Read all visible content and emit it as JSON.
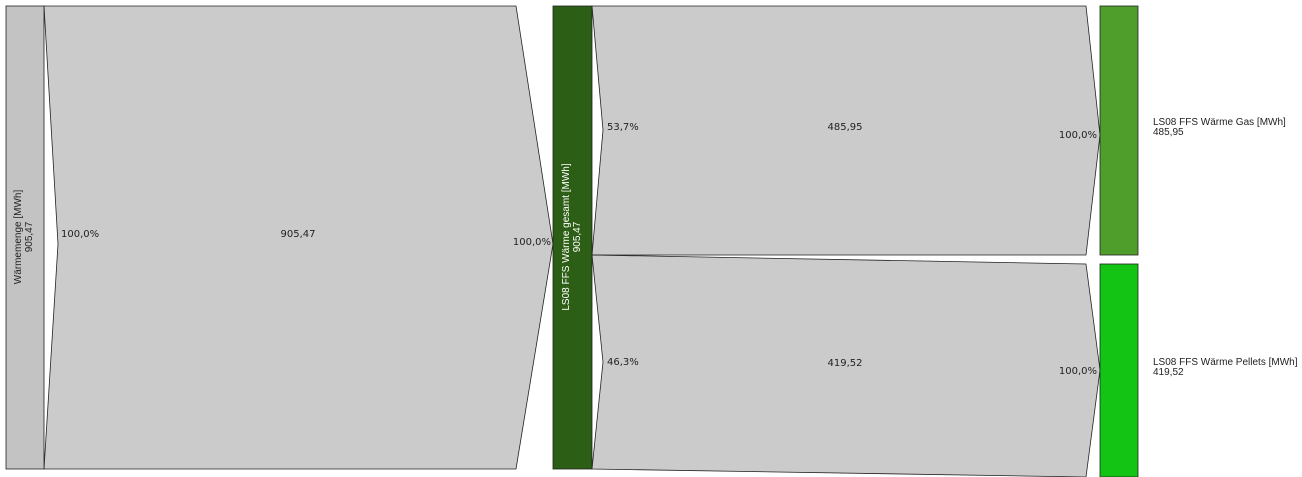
{
  "colors": {
    "flow": "#cbcbcb",
    "source_node": "#c3c3c3",
    "middle_node": "#2d5e16",
    "gas_node": "#4f9e2c",
    "pellets_node": "#14c414"
  },
  "chart_data": {
    "type": "sankey",
    "nodes": [
      {
        "id": "source",
        "name": "Wärmemenge [MWh]",
        "value": "905,47"
      },
      {
        "id": "total",
        "name": "LS08 FFS Wärme gesamt [MWh]",
        "value": "905,47"
      },
      {
        "id": "gas",
        "name": "LS08 FFS Wärme Gas [MWh]",
        "value": "485,95"
      },
      {
        "id": "pellets",
        "name": "LS08 FFS Wärme Pellets [MWh]",
        "value": "419,52"
      }
    ],
    "links": [
      {
        "source": "source",
        "target": "total",
        "value": 905.47,
        "value_label": "905,47",
        "pct_out": "100,0%",
        "pct_in": "100,0%"
      },
      {
        "source": "total",
        "target": "gas",
        "value": 485.95,
        "value_label": "485,95",
        "pct_out": "53,7%",
        "pct_in": "100,0%"
      },
      {
        "source": "total",
        "target": "pellets",
        "value": 419.52,
        "value_label": "419,52",
        "pct_out": "46,3%",
        "pct_in": "100,0%"
      }
    ]
  }
}
